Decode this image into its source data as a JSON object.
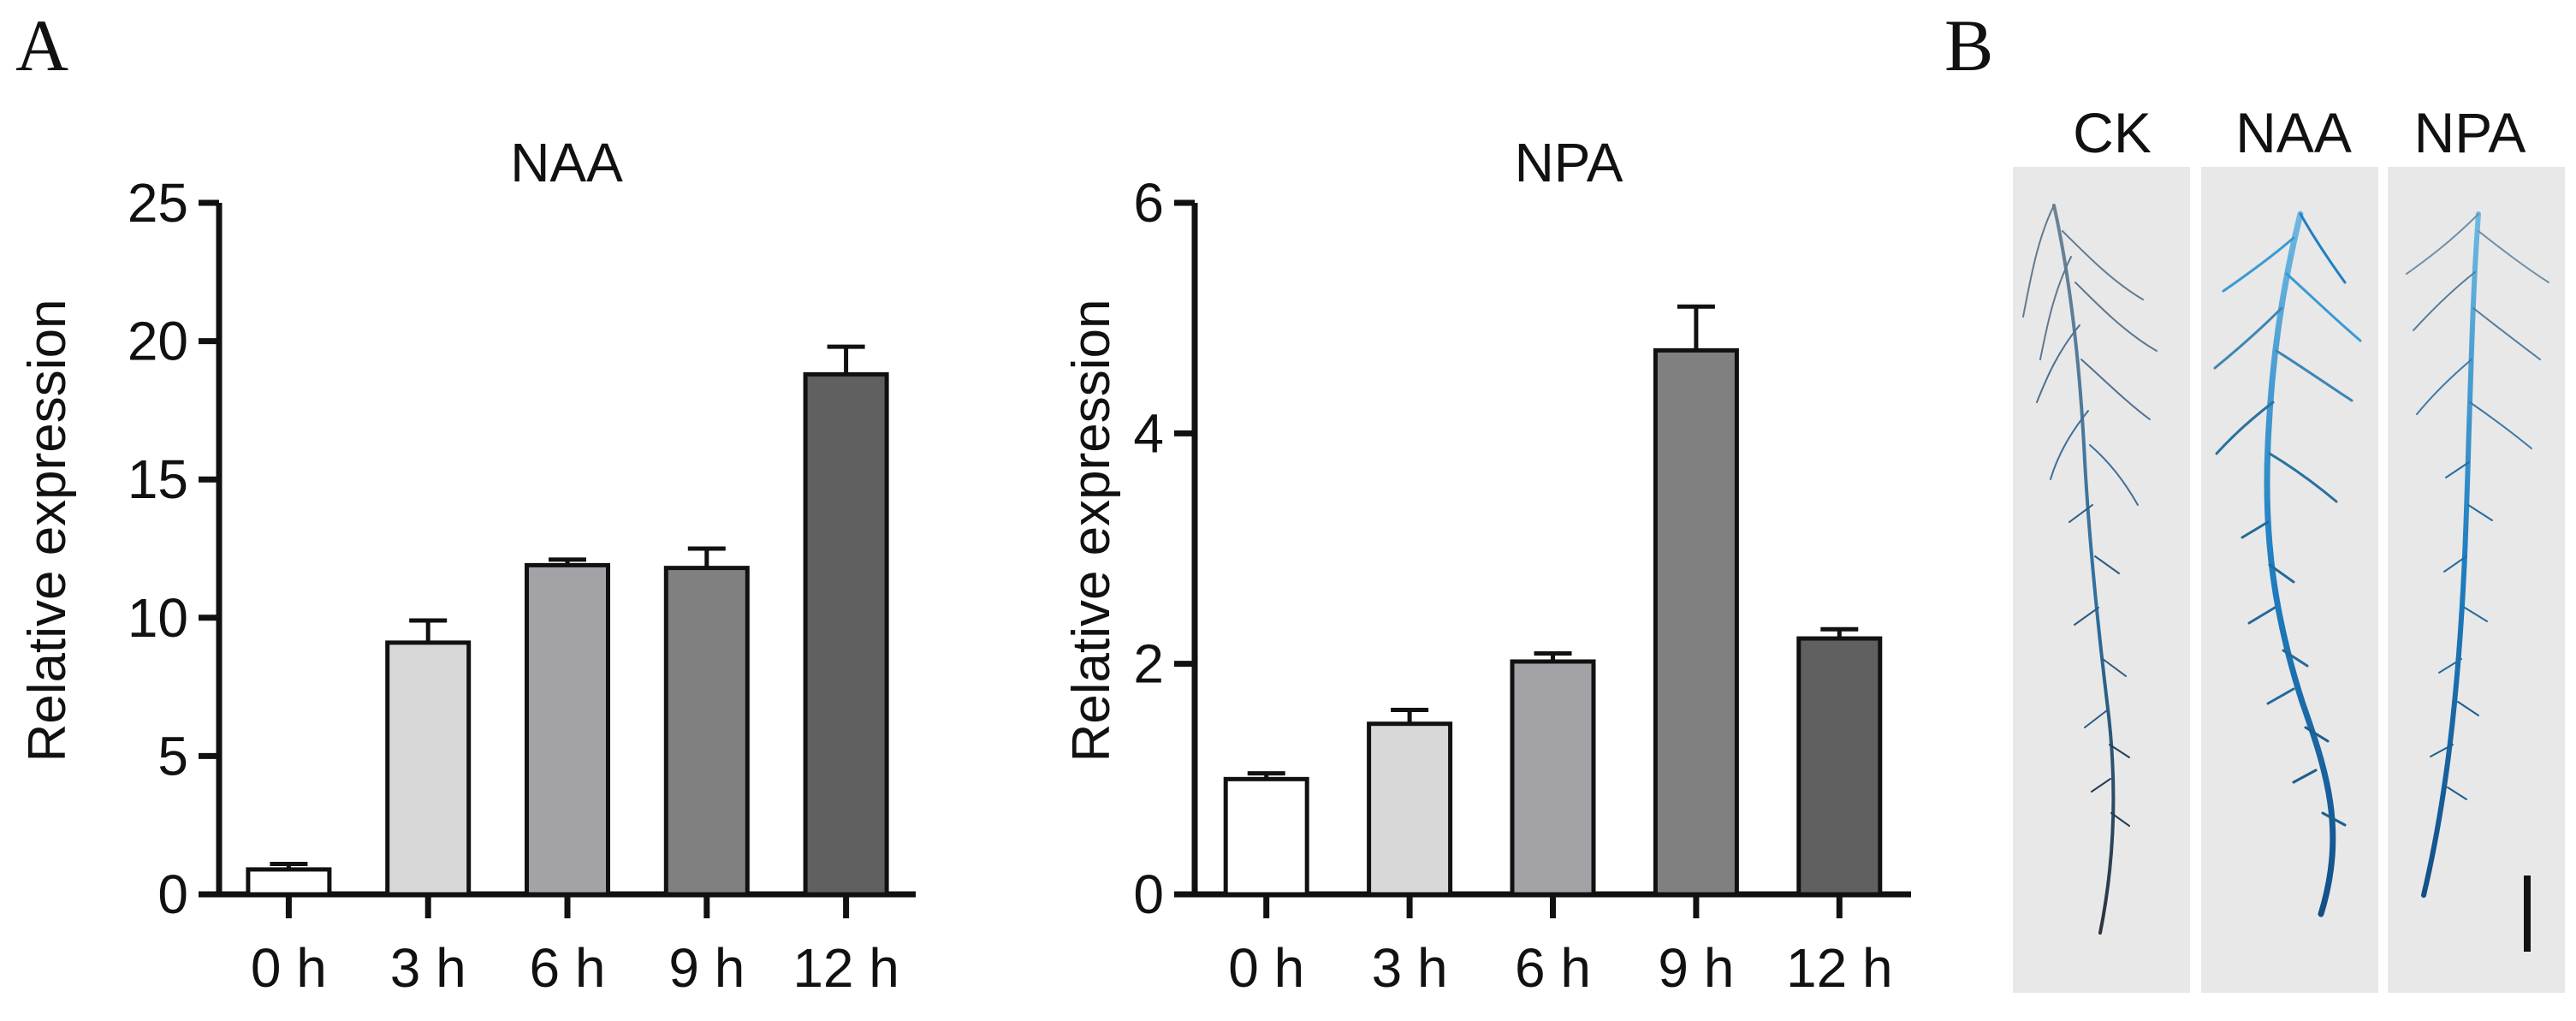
{
  "figure": {
    "panel_a_letter": "A",
    "panel_b_letter": "B"
  },
  "chart_data": [
    {
      "type": "bar",
      "title": "NAA",
      "xlabel": "",
      "ylabel": "Relative expression",
      "categories": [
        "0 h",
        "3 h",
        "6 h",
        "9 h",
        "12 h"
      ],
      "values": [
        0.9,
        9.1,
        11.9,
        11.8,
        18.8
      ],
      "errors": [
        0.2,
        0.8,
        0.2,
        0.7,
        1.0
      ],
      "ylim": [
        0,
        25
      ],
      "yticks": [
        "0",
        "5",
        "10",
        "15",
        "20",
        "25"
      ],
      "bar_colors": [
        "#ffffff",
        "#d8d8d8",
        "#a3a3a7",
        "#808080",
        "#606060"
      ],
      "grid": false
    },
    {
      "type": "bar",
      "title": "NPA",
      "xlabel": "",
      "ylabel": "Relative expression",
      "categories": [
        "0 h",
        "3 h",
        "6 h",
        "9 h",
        "12 h"
      ],
      "values": [
        1.0,
        1.48,
        2.02,
        4.72,
        2.22
      ],
      "errors": [
        0.05,
        0.12,
        0.07,
        0.38,
        0.08
      ],
      "ylim": [
        0,
        6
      ],
      "yticks": [
        "0",
        "2",
        "4",
        "6"
      ],
      "bar_colors": [
        "#ffffff",
        "#d8d8d8",
        "#a3a3a7",
        "#808080",
        "#606060"
      ],
      "grid": false
    }
  ],
  "photo": {
    "labels": [
      "CK",
      "NAA",
      "NPA"
    ],
    "stain_color": "#1f7fc2",
    "background": "#e8e8e8",
    "scale_bar": true
  }
}
